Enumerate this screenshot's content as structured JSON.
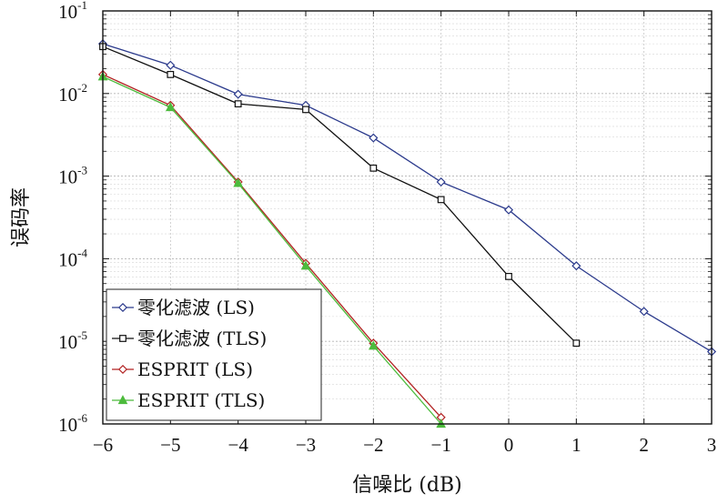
{
  "chart_data": {
    "type": "line",
    "xlabel": "信噪比 (dB)",
    "ylabel": "误码率",
    "x_ticks": [
      "−6",
      "−5",
      "−4",
      "−3",
      "−2",
      "−1",
      "0",
      "1",
      "2",
      "3"
    ],
    "y_ticks": [
      {
        "base": "10",
        "exp": "-1"
      },
      {
        "base": "10",
        "exp": "-2"
      },
      {
        "base": "10",
        "exp": "-3"
      },
      {
        "base": "10",
        "exp": "-4"
      },
      {
        "base": "10",
        "exp": "-5"
      },
      {
        "base": "10",
        "exp": "-6"
      }
    ],
    "xlim": [
      -6,
      3
    ],
    "ylim": [
      1e-06,
      0.1
    ],
    "y_scale": "log",
    "grid": true,
    "legend_position": "bottom-left",
    "series": [
      {
        "name": "零化滤波 (LS)",
        "color": "#2b3a8c",
        "marker": "diamond",
        "x": [
          -6,
          -5,
          -4,
          -3,
          -2,
          -1,
          0,
          1,
          2,
          3
        ],
        "y": [
          0.04,
          0.022,
          0.0098,
          0.0072,
          0.0029,
          0.00085,
          0.00039,
          8.2e-05,
          2.3e-05,
          7.5e-06
        ]
      },
      {
        "name": "零化滤波 (TLS)",
        "color": "#111111",
        "marker": "square",
        "x": [
          -6,
          -5,
          -4,
          -3,
          -2,
          -1,
          0,
          1
        ],
        "y": [
          0.037,
          0.017,
          0.0075,
          0.0064,
          0.00125,
          0.00052,
          6.1e-05,
          9.5e-06
        ]
      },
      {
        "name": "ESPRIT (LS)",
        "color": "#b22222",
        "marker": "diamond",
        "x": [
          -6,
          -5,
          -4,
          -3,
          -2,
          -1
        ],
        "y": [
          0.017,
          0.0072,
          0.00085,
          8.8e-05,
          9.5e-06,
          1.2e-06
        ]
      },
      {
        "name": "ESPRIT (TLS)",
        "color": "#4cbb3c",
        "marker": "triangle",
        "x": [
          -6,
          -5,
          -4,
          -3,
          -2,
          -1
        ],
        "y": [
          0.016,
          0.0068,
          0.00082,
          8.2e-05,
          8.8e-06,
          1e-06
        ]
      }
    ]
  }
}
